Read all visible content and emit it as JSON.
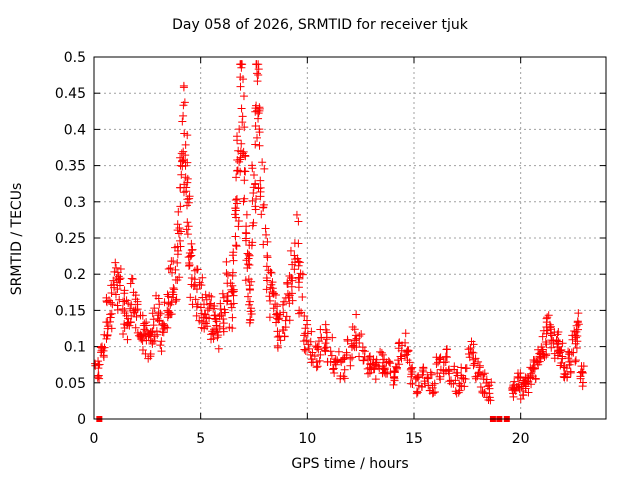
{
  "chart_data": {
    "type": "scatter",
    "title": "Day 058 of 2026, SRMTID for receiver tjuk",
    "xlabel": "GPS time / hours",
    "ylabel": "SRMTID / TECUs",
    "xlim": [
      0,
      24
    ],
    "ylim": [
      0,
      0.5
    ],
    "xticks": [
      "0",
      "5",
      "10",
      "15",
      "20"
    ],
    "yticks": [
      "0",
      "0.05",
      "0.1",
      "0.15",
      "0.2",
      "0.25",
      "0.3",
      "0.35",
      "0.4",
      "0.45",
      "0.5"
    ],
    "grid": true,
    "marker": "+",
    "color": "#ff0000",
    "zero_markers": [
      0.25,
      18.7,
      19.0,
      19.35
    ],
    "series": [
      {
        "name": "SRMTID",
        "x": [
          0.0,
          0.3,
          0.5,
          0.7,
          0.9,
          1.1,
          1.3,
          1.5,
          1.7,
          1.9,
          2.1,
          2.3,
          2.5,
          2.7,
          2.9,
          3.1,
          3.3,
          3.5,
          3.7,
          3.9,
          4.0,
          4.1,
          4.2,
          4.3,
          4.4,
          4.5,
          4.7,
          4.9,
          5.1,
          5.3,
          5.5,
          5.7,
          5.9,
          6.1,
          6.3,
          6.5,
          6.6,
          6.7,
          6.8,
          6.9,
          7.0,
          7.1,
          7.2,
          7.3,
          7.4,
          7.5,
          7.6,
          7.7,
          7.8,
          8.0,
          8.2,
          8.4,
          8.6,
          8.8,
          9.0,
          9.2,
          9.4,
          9.6,
          9.8,
          10.0,
          10.3,
          10.6,
          10.9,
          11.2,
          11.5,
          11.8,
          12.1,
          12.4,
          12.7,
          13.0,
          13.3,
          13.6,
          13.9,
          14.2,
          14.5,
          14.8,
          15.1,
          15.4,
          15.7,
          16.0,
          16.3,
          16.6,
          16.9,
          17.2,
          17.5,
          17.8,
          18.1,
          18.4,
          19.6,
          19.8,
          20.0,
          20.2,
          20.4,
          20.6,
          20.8,
          21.0,
          21.2,
          21.4,
          21.6,
          21.8,
          22.0,
          22.2,
          22.4,
          22.6,
          22.8
        ],
        "y": [
          0.065,
          0.1,
          0.14,
          0.16,
          0.18,
          0.17,
          0.15,
          0.14,
          0.16,
          0.15,
          0.12,
          0.11,
          0.1,
          0.13,
          0.14,
          0.12,
          0.15,
          0.18,
          0.2,
          0.24,
          0.3,
          0.36,
          0.4,
          0.33,
          0.27,
          0.2,
          0.18,
          0.16,
          0.15,
          0.14,
          0.13,
          0.12,
          0.15,
          0.18,
          0.16,
          0.2,
          0.28,
          0.33,
          0.43,
          0.47,
          0.38,
          0.24,
          0.2,
          0.16,
          0.3,
          0.36,
          0.45,
          0.4,
          0.3,
          0.22,
          0.18,
          0.15,
          0.12,
          0.14,
          0.17,
          0.2,
          0.24,
          0.18,
          0.12,
          0.1,
          0.09,
          0.11,
          0.1,
          0.08,
          0.07,
          0.09,
          0.12,
          0.1,
          0.08,
          0.07,
          0.08,
          0.07,
          0.06,
          0.09,
          0.1,
          0.06,
          0.05,
          0.06,
          0.05,
          0.07,
          0.08,
          0.06,
          0.05,
          0.06,
          0.09,
          0.07,
          0.05,
          0.04,
          0.04,
          0.05,
          0.04,
          0.05,
          0.06,
          0.07,
          0.09,
          0.1,
          0.12,
          0.11,
          0.1,
          0.09,
          0.07,
          0.08,
          0.1,
          0.12,
          0.06
        ]
      }
    ]
  }
}
